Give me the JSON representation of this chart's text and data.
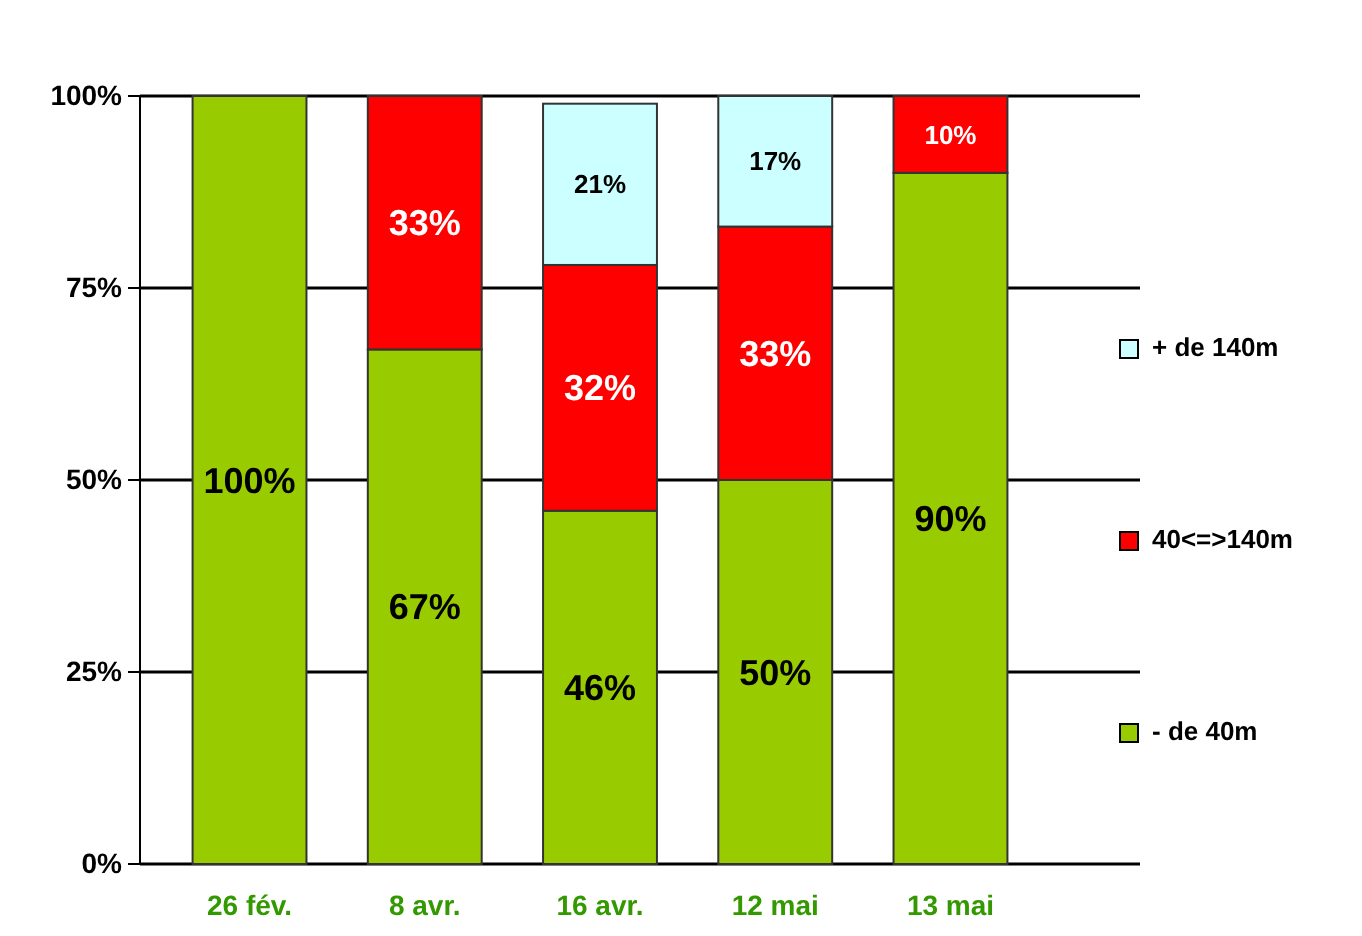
{
  "chart_data": {
    "type": "bar",
    "stacked": true,
    "categories": [
      "26 fév.",
      "8 avr.",
      "16 avr.",
      "12 mai",
      "13 mai"
    ],
    "series": [
      {
        "name": "- de 40m",
        "color": "#99cc00",
        "values": [
          100,
          67,
          46,
          50,
          90
        ],
        "value_labels": [
          "100%",
          "67%",
          "46%",
          "50%",
          "90%"
        ]
      },
      {
        "name": "40<=>140m",
        "color": "#ff0000",
        "values": [
          null,
          33,
          32,
          33,
          10
        ],
        "value_labels": [
          null,
          "33%",
          "32%",
          "33%",
          "10%"
        ]
      },
      {
        "name": "+ de 140m",
        "color": "#ccffff",
        "values": [
          null,
          null,
          21,
          17,
          null
        ],
        "value_labels": [
          null,
          null,
          "21%",
          "17%",
          null
        ]
      }
    ],
    "ylim": [
      0,
      100
    ],
    "yticks": [
      {
        "value": 0,
        "label": "0%"
      },
      {
        "value": 25,
        "label": "25%"
      },
      {
        "value": 50,
        "label": "50%"
      },
      {
        "value": 75,
        "label": "75%"
      },
      {
        "value": 100,
        "label": "100%"
      }
    ],
    "grid": "y",
    "legend": "right"
  }
}
